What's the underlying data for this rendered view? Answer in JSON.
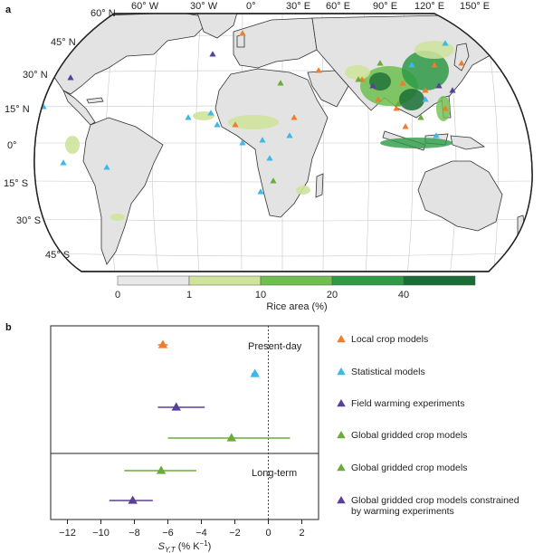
{
  "panel_a": {
    "letter": "a",
    "longitude_labels": [
      "60° W",
      "30° W",
      "0°",
      "30° E",
      "60° E",
      "90° E",
      "120° E",
      "150° E"
    ],
    "latitude_labels": [
      "60° N",
      "45° N",
      "30° N",
      "15° N",
      "0°",
      "15° S",
      "30° S",
      "45° S"
    ],
    "colorbar": {
      "title": "Rice area (%)",
      "tick_labels": [
        "0",
        "1",
        "10",
        "20",
        "40"
      ],
      "colors": [
        "#e8e8e8",
        "#cfe39b",
        "#6fbf4f",
        "#2e9a46",
        "#1a6e35"
      ]
    },
    "colors": {
      "land": "#e3e3e3",
      "coast": "#333333",
      "local": "#f07c2c",
      "statistical": "#3cb9ea",
      "field": "#5a3f99",
      "global": "#6aab3a"
    }
  },
  "panel_b": {
    "letter": "b",
    "section_labels": [
      "Present-day",
      "Long-term"
    ],
    "xlabel_main": "S",
    "xlabel_sub": "Y,T",
    "xlabel_units": "(% K",
    "xlabel_exp": "−1",
    "xlabel_close": ")"
  },
  "chart_data": {
    "type": "scatter",
    "x_axis": {
      "ticks": [
        -12,
        -10,
        -8,
        -6,
        -4,
        -2,
        0,
        2
      ],
      "tick_labels": [
        "−12",
        "−10",
        "−8",
        "−6",
        "−4",
        "−2",
        "0",
        "2"
      ],
      "xlim": [
        -13,
        3
      ]
    },
    "series": [
      {
        "name": "Local crop models",
        "period": "Present-day",
        "mean": -6.3,
        "err_low": -6.6,
        "err_high": -6.0,
        "color": "#f07c2c"
      },
      {
        "name": "Statistical models",
        "period": "Present-day",
        "mean": -0.8,
        "err_low": -1.0,
        "err_high": -0.6,
        "color": "#3cb9ea"
      },
      {
        "name": "Field warming experiments",
        "period": "Present-day",
        "mean": -5.5,
        "err_low": -6.6,
        "err_high": -3.8,
        "color": "#5a3f99"
      },
      {
        "name": "Global gridded crop models",
        "period": "Present-day",
        "mean": -2.2,
        "err_low": -6.0,
        "err_high": 1.3,
        "color": "#6aab3a"
      },
      {
        "name": "Global gridded crop models",
        "period": "Long-term",
        "mean": -6.4,
        "err_low": -8.6,
        "err_high": -4.3,
        "color": "#6aab3a"
      },
      {
        "name": "Global gridded crop models constrained\nby warming experiments",
        "period": "Long-term",
        "mean": -8.1,
        "err_low": -9.5,
        "err_high": -6.9,
        "color": "#5a3f99"
      }
    ],
    "legend_lines": [
      [
        "Local crop models"
      ],
      [
        "Statistical models"
      ],
      [
        "Field warming experiments"
      ],
      [
        "Global gridded crop models"
      ],
      [
        "Global gridded crop models"
      ],
      [
        "Global gridded crop models constrained",
        "by warming experiments"
      ]
    ],
    "zero_line": 0
  }
}
